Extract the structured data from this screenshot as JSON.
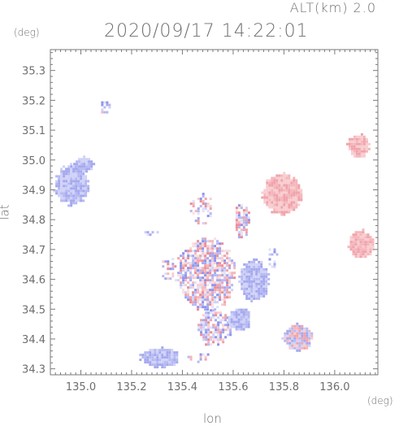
{
  "header": {
    "altitude_label": "ALT(km)  2.0",
    "timestamp": "2020/09/17 14:22:01"
  },
  "axes": {
    "y_unit": "(deg)",
    "x_unit": "(deg)",
    "x_label": "lon",
    "y_label": "lat"
  },
  "chart_data": {
    "type": "heatmap",
    "title": "2020/09/17 14:22:01",
    "xlabel": "lon",
    "ylabel": "lat",
    "xlim": [
      134.88,
      136.17
    ],
    "ylim": [
      34.28,
      35.37
    ],
    "x_ticks": [
      135.0,
      135.2,
      135.4,
      135.6,
      135.8,
      136.0
    ],
    "x_tick_labels": [
      "135.0",
      "135.2",
      "135.4",
      "135.6",
      "135.8",
      "136.0"
    ],
    "y_ticks": [
      34.3,
      34.4,
      34.5,
      34.6,
      34.7,
      34.8,
      34.9,
      35.0,
      35.1,
      35.2,
      35.3
    ],
    "y_tick_labels": [
      "34.3",
      "34.4",
      "34.5",
      "34.6",
      "34.7",
      "34.8",
      "34.9",
      "35.0",
      "35.1",
      "35.2",
      "35.3"
    ],
    "colors": {
      "positive": "#f2a0a6",
      "negative": "#a7aaf0",
      "axis": "#7a7a7a"
    },
    "regions": [
      {
        "lon": 134.96,
        "lat": 34.92,
        "rlon": 0.07,
        "rlat": 0.07,
        "sign": "neg",
        "pattern": "smooth"
      },
      {
        "lon": 135.01,
        "lat": 34.99,
        "rlon": 0.04,
        "rlat": 0.025,
        "sign": "neg",
        "pattern": "smooth"
      },
      {
        "lon": 135.09,
        "lat": 35.18,
        "rlon": 0.02,
        "rlat": 0.025,
        "sign": "mix",
        "pattern": "speckle"
      },
      {
        "lon": 135.79,
        "lat": 34.89,
        "rlon": 0.08,
        "rlat": 0.07,
        "sign": "pos",
        "pattern": "smooth"
      },
      {
        "lon": 136.09,
        "lat": 35.05,
        "rlon": 0.045,
        "rlat": 0.04,
        "sign": "pos",
        "pattern": "smooth"
      },
      {
        "lon": 136.1,
        "lat": 34.72,
        "rlon": 0.05,
        "rlat": 0.05,
        "sign": "pos",
        "pattern": "smooth"
      },
      {
        "lon": 135.49,
        "lat": 34.62,
        "rlon": 0.12,
        "rlat": 0.12,
        "sign": "mix",
        "pattern": "speckle"
      },
      {
        "lon": 135.52,
        "lat": 34.44,
        "rlon": 0.07,
        "rlat": 0.06,
        "sign": "mix",
        "pattern": "speckle"
      },
      {
        "lon": 135.68,
        "lat": 34.6,
        "rlon": 0.06,
        "rlat": 0.07,
        "sign": "neg",
        "pattern": "smooth"
      },
      {
        "lon": 135.62,
        "lat": 34.47,
        "rlon": 0.05,
        "rlat": 0.04,
        "sign": "neg",
        "pattern": "smooth"
      },
      {
        "lon": 135.63,
        "lat": 34.8,
        "rlon": 0.03,
        "rlat": 0.06,
        "sign": "mix",
        "pattern": "speckle"
      },
      {
        "lon": 135.47,
        "lat": 34.84,
        "rlon": 0.05,
        "rlat": 0.05,
        "sign": "mix",
        "pattern": "sparse"
      },
      {
        "lon": 135.85,
        "lat": 34.41,
        "rlon": 0.06,
        "rlat": 0.045,
        "sign": "mix",
        "pattern": "smooth"
      },
      {
        "lon": 135.31,
        "lat": 34.34,
        "rlon": 0.08,
        "rlat": 0.035,
        "sign": "neg",
        "pattern": "smooth"
      },
      {
        "lon": 135.46,
        "lat": 34.34,
        "rlon": 0.05,
        "rlat": 0.02,
        "sign": "mix",
        "pattern": "sparse"
      },
      {
        "lon": 135.34,
        "lat": 34.64,
        "rlon": 0.03,
        "rlat": 0.04,
        "sign": "mix",
        "pattern": "sparse"
      },
      {
        "lon": 135.75,
        "lat": 34.68,
        "rlon": 0.02,
        "rlat": 0.04,
        "sign": "neg",
        "pattern": "sparse"
      },
      {
        "lon": 135.27,
        "lat": 34.76,
        "rlon": 0.03,
        "rlat": 0.01,
        "sign": "mix",
        "pattern": "sparse"
      }
    ]
  }
}
